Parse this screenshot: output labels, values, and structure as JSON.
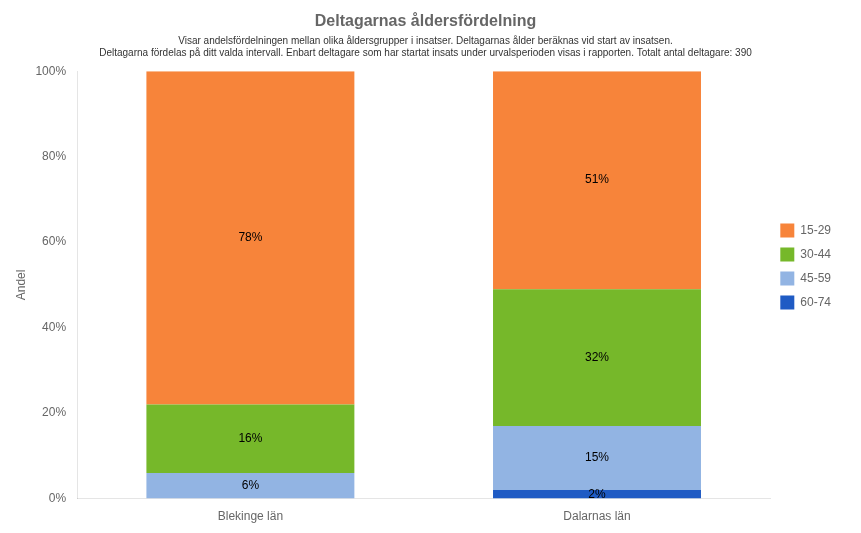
{
  "chart_data": {
    "type": "bar",
    "stacked": true,
    "title": "Deltagarnas åldersfördelning",
    "subtitle": [
      "Visar andelsfördelningen mellan olika åldersgrupper i insatser. Deltagarnas ålder beräknas vid start av insatsen.",
      "Deltagarna fördelas på ditt valda intervall. Enbart deltagare som har startat insats under urvalsperioden visas i rapporten. Totalt antal deltagare: 390"
    ],
    "ylabel": "Andel",
    "categories": [
      "Blekinge län",
      "Dalarnas län"
    ],
    "series": [
      {
        "name": "60-74",
        "color": "#1f5bc4",
        "values": [
          0,
          2
        ],
        "value_labels": [
          null,
          "2%"
        ]
      },
      {
        "name": "45-59",
        "color": "#92b4e3",
        "values": [
          6,
          15
        ],
        "value_labels": [
          "6%",
          "15%"
        ]
      },
      {
        "name": "30-44",
        "color": "#76b82a",
        "values": [
          16,
          32
        ],
        "value_labels": [
          "16%",
          "32%"
        ]
      },
      {
        "name": "15-29",
        "color": "#f7843a",
        "values": [
          78,
          51
        ],
        "value_labels": [
          "78%",
          "51%"
        ]
      }
    ],
    "ylim": [
      0,
      100
    ],
    "yticks": [
      {
        "value": 0,
        "label": "0%"
      },
      {
        "value": 20,
        "label": "20%"
      },
      {
        "value": 40,
        "label": "40%"
      },
      {
        "value": 60,
        "label": "60%"
      },
      {
        "value": 80,
        "label": "80%"
      },
      {
        "value": 100,
        "label": "100%"
      }
    ],
    "grid": false,
    "legend": "right",
    "data_labels": true
  }
}
